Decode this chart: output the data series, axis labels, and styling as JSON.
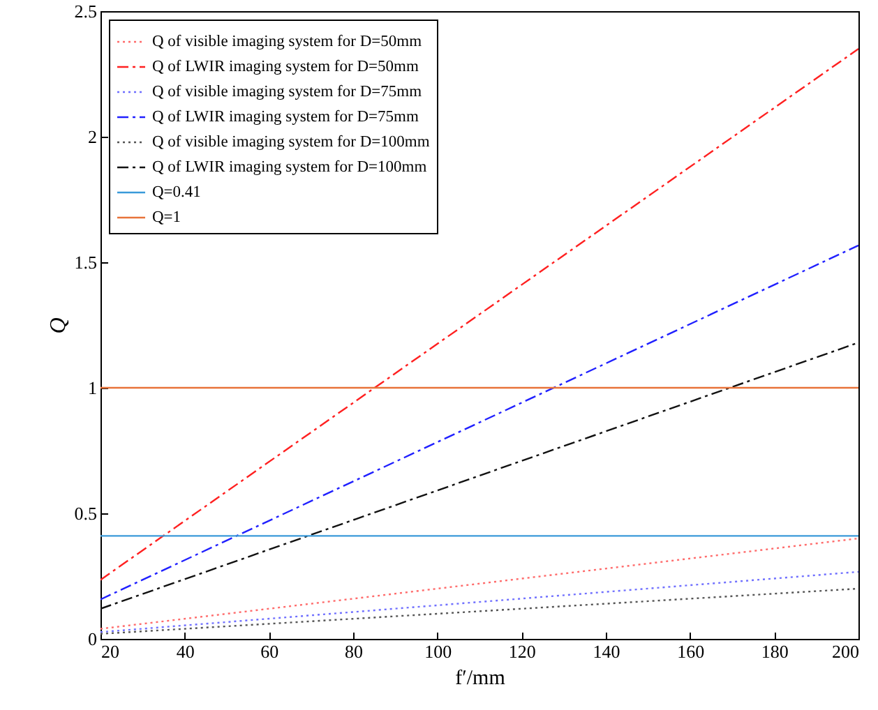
{
  "chart_data": {
    "type": "line",
    "xlabel": "f′/mm",
    "ylabel": "Q",
    "xlim": [
      20,
      200
    ],
    "xticks": [
      20,
      40,
      60,
      80,
      100,
      120,
      140,
      160,
      180,
      200
    ],
    "ylim": [
      0,
      2.5
    ],
    "yticks": [
      0,
      0.5,
      1,
      1.5,
      2,
      2.5
    ],
    "legend": "top left",
    "grid": false,
    "x": [
      20,
      200
    ],
    "series": [
      {
        "name": "Q of visible imaging system for D=50mm",
        "color": "#ff6b6b",
        "line_style": "dotted",
        "values": [
          0.04,
          0.4
        ]
      },
      {
        "name": "Q of LWIR imaging system for D=50mm",
        "color": "#ff2020",
        "line_style": "dashed",
        "values": [
          0.235,
          2.35
        ]
      },
      {
        "name": "Q of visible imaging system for D=75mm",
        "color": "#7070ff",
        "line_style": "dotted",
        "values": [
          0.027,
          0.267
        ]
      },
      {
        "name": "Q of LWIR imaging system for D=75mm",
        "color": "#2020ff",
        "line_style": "dashed",
        "values": [
          0.157,
          1.567
        ]
      },
      {
        "name": "Q of visible imaging system for D=100mm",
        "color": "#555555",
        "line_style": "dotted",
        "values": [
          0.02,
          0.2
        ]
      },
      {
        "name": "Q of LWIR imaging system for D=100mm",
        "color": "#111111",
        "line_style": "dashed",
        "values": [
          0.12,
          1.18
        ]
      },
      {
        "name": "Q=0.41",
        "color": "#3a9ad9",
        "line_style": "solid",
        "values": [
          0.41,
          0.41
        ]
      },
      {
        "name": "Q=1",
        "color": "#e8733a",
        "line_style": "solid",
        "values": [
          1,
          1
        ]
      }
    ]
  }
}
